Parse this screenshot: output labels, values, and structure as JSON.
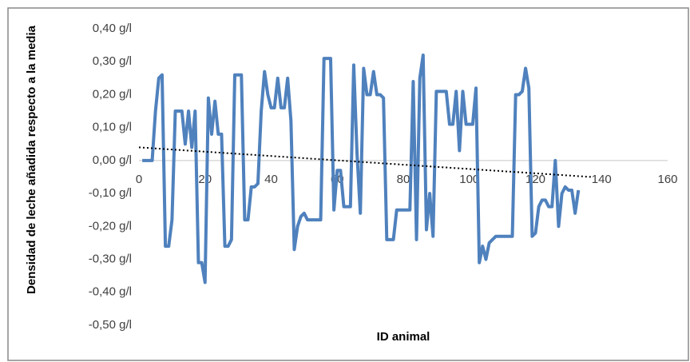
{
  "chart_data": {
    "type": "line",
    "ylabel": "Densidad de leche añadida respecto a la media",
    "xlabel": "ID animal",
    "x": [
      1,
      2,
      3,
      4,
      5,
      6,
      7,
      8,
      9,
      10,
      11,
      12,
      13,
      14,
      15,
      16,
      17,
      18,
      19,
      20,
      21,
      22,
      23,
      24,
      25,
      26,
      27,
      28,
      29,
      30,
      31,
      32,
      33,
      34,
      35,
      36,
      37,
      38,
      39,
      40,
      41,
      42,
      43,
      44,
      45,
      46,
      47,
      48,
      49,
      50,
      51,
      52,
      53,
      54,
      55,
      56,
      57,
      58,
      59,
      60,
      61,
      62,
      63,
      64,
      65,
      66,
      67,
      68,
      69,
      70,
      71,
      72,
      73,
      74,
      75,
      76,
      77,
      78,
      79,
      80,
      81,
      82,
      83,
      84,
      85,
      86,
      87,
      88,
      89,
      90,
      91,
      92,
      93,
      94,
      95,
      96,
      97,
      98,
      99,
      100,
      101,
      102,
      103,
      104,
      105,
      106,
      107,
      108,
      109,
      110,
      111,
      112,
      113,
      114,
      115,
      116,
      117,
      118,
      119,
      120,
      121,
      122,
      123,
      124,
      125,
      126,
      127,
      128,
      129,
      130,
      131,
      132,
      133
    ],
    "series": [
      {
        "color": "#4f81bd",
        "values": [
          0,
          0,
          0,
          0,
          0.15,
          0.25,
          0.26,
          -0.26,
          -0.26,
          -0.18,
          0.15,
          0.15,
          0.15,
          0.05,
          0.15,
          0.04,
          0.15,
          -0.31,
          -0.31,
          -0.37,
          0.19,
          0.08,
          0.18,
          0.08,
          0.08,
          -0.26,
          -0.26,
          -0.24,
          0.26,
          0.26,
          0.26,
          -0.18,
          -0.18,
          -0.08,
          -0.08,
          -0.07,
          0.15,
          0.27,
          0.2,
          0.16,
          0.16,
          0.25,
          0.16,
          0.16,
          0.25,
          0.12,
          -0.27,
          -0.2,
          -0.17,
          -0.16,
          -0.18,
          -0.18,
          -0.18,
          -0.18,
          -0.18,
          0.31,
          0.31,
          0.31,
          -0.15,
          -0.03,
          -0.03,
          -0.14,
          -0.14,
          -0.14,
          0.29,
          0.02,
          -0.16,
          0.28,
          0.2,
          0.2,
          0.27,
          0.2,
          0.2,
          0.19,
          -0.24,
          -0.24,
          -0.24,
          -0.15,
          -0.15,
          -0.15,
          -0.15,
          -0.15,
          0.24,
          -0.24,
          0.25,
          0.32,
          -0.21,
          -0.1,
          -0.23,
          0.21,
          0.21,
          0.21,
          0.21,
          0.11,
          0.11,
          0.21,
          0.03,
          0.21,
          0.11,
          0.11,
          0.11,
          0.22,
          -0.31,
          -0.26,
          -0.3,
          -0.25,
          -0.24,
          -0.23,
          -0.23,
          -0.23,
          -0.23,
          -0.23,
          -0.23,
          0.2,
          0.2,
          0.21,
          0.28,
          0.22,
          -0.23,
          -0.22,
          -0.14,
          -0.12,
          -0.12,
          -0.14,
          -0.14,
          0,
          -0.2,
          -0.1,
          -0.08,
          -0.09,
          -0.09,
          -0.16,
          -0.09
        ]
      }
    ],
    "trendline": {
      "color": "#000000",
      "x": [
        0,
        137
      ],
      "values": [
        0.04,
        -0.05
      ]
    },
    "xlim": [
      0,
      160
    ],
    "xticks": [
      0,
      20,
      40,
      60,
      80,
      100,
      120,
      140,
      160
    ],
    "ylim": [
      -0.5,
      0.4
    ],
    "yticks": [
      {
        "value": -0.5,
        "label": "-0,50 g/l"
      },
      {
        "value": -0.4,
        "label": "-0,40 g/l"
      },
      {
        "value": -0.3,
        "label": "-0,30 g/l"
      },
      {
        "value": -0.2,
        "label": "-0,20 g/l"
      },
      {
        "value": -0.1,
        "label": "-0,10 g/l"
      },
      {
        "value": 0,
        "label": "0,00 g/l"
      },
      {
        "value": 0.1,
        "label": "0,10 g/l"
      },
      {
        "value": 0.2,
        "label": "0,20 g/l"
      },
      {
        "value": 0.3,
        "label": "0,30 g/l"
      },
      {
        "value": 0.4,
        "label": "0,40 g/l"
      }
    ]
  }
}
